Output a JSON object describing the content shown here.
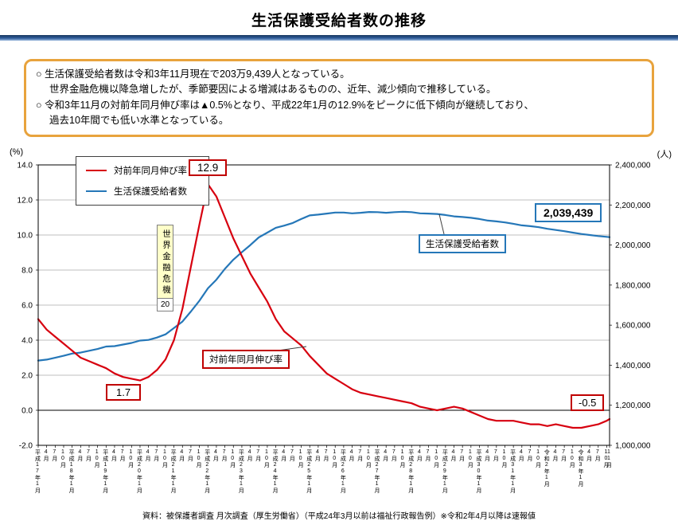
{
  "title": "生活保護受給者数の推移",
  "summary_box": {
    "lines": [
      {
        "text": "○ 生活保護受給者数は令和3年11月現在で203万9,439人となっている。",
        "indent": false
      },
      {
        "text": "世界金融危機以降急増したが、季節要因による増減はあるものの、近年、減少傾向で推移している。",
        "indent": true
      },
      {
        "text": "○ 令和3年11月の対前年同月伸び率は▲0.5%となり、平成22年1月の12.9%をピークに低下傾向が継続しており、",
        "indent": false
      },
      {
        "text": "過去10年間でも低い水準となっている。",
        "indent": true
      }
    ]
  },
  "colors": {
    "rate_line": "#d7000f",
    "recipients_line": "#2577b8",
    "red_callout_border": "#c00000",
    "blue_callout_border": "#2577b8",
    "summary_border": "#e8a33d",
    "crisis_box_bg": "#ffffc9",
    "title_bar": "#17375e",
    "grid": "#bfbfbf"
  },
  "chart_data": {
    "type": "line",
    "title": "生活保護受給者数の推移",
    "grid": true,
    "legend_position": "top-left",
    "left_axis": {
      "unit": "(%)",
      "min": -2,
      "max": 14,
      "ticks": [
        {
          "v": 14,
          "label": "14.0"
        },
        {
          "v": 12,
          "label": "12.0"
        },
        {
          "v": 10,
          "label": "10.0"
        },
        {
          "v": 8,
          "label": "8.0"
        },
        {
          "v": 6,
          "label": "6.0"
        },
        {
          "v": 4,
          "label": "4.0"
        },
        {
          "v": 2,
          "label": "2.0"
        },
        {
          "v": 0,
          "label": "0.0"
        },
        {
          "v": -2,
          "label": "-2.0"
        }
      ]
    },
    "right_axis": {
      "unit": "(人)",
      "min": 1000000,
      "max": 2400000,
      "ticks": [
        {
          "v": 2400000,
          "label": "2,400,000"
        },
        {
          "v": 2200000,
          "label": "2,200,000"
        },
        {
          "v": 2000000,
          "label": "2,000,000"
        },
        {
          "v": 1800000,
          "label": "1,800,000"
        },
        {
          "v": 1600000,
          "label": "1,600,000"
        },
        {
          "v": 1400000,
          "label": "1,400,000"
        },
        {
          "v": 1200000,
          "label": "1,200,000"
        },
        {
          "v": 1000000,
          "label": "1,000,000"
        }
      ]
    },
    "x_tick_labels": [
      "平成17年1月",
      "4月",
      "7月",
      "10月",
      "平成18年1月",
      "4月",
      "7月",
      "10月",
      "平成19年1月",
      "4月",
      "7月",
      "10月",
      "平成20年1月",
      "4月",
      "7月",
      "10月",
      "平成21年1月",
      "4月",
      "7月",
      "10月",
      "平成22年1月",
      "4月",
      "7月",
      "10月",
      "平成23年1月",
      "4月",
      "7月",
      "10月",
      "平成24年1月",
      "4月",
      "7月",
      "10月",
      "平成25年1月",
      "4月",
      "7月",
      "10月",
      "平成26年1月",
      "4月",
      "7月",
      "10月",
      "平成27年1月",
      "4月",
      "7月",
      "10月",
      "平成28年1月",
      "4月",
      "7月",
      "10月",
      "平成29年1月",
      "4月",
      "7月",
      "10月",
      "平成30年1月",
      "4月",
      "7月",
      "10月",
      "平成31年1月",
      "4月",
      "7月",
      "10月",
      "令和2年1月",
      "4月",
      "7月",
      "10月",
      "令和3年1月",
      "4月",
      "7月",
      "10月",
      "11月"
    ],
    "x_month_index": [
      0,
      3,
      6,
      9,
      12,
      15,
      18,
      21,
      24,
      27,
      30,
      33,
      36,
      39,
      42,
      45,
      48,
      51,
      54,
      57,
      60,
      63,
      66,
      69,
      72,
      75,
      78,
      81,
      84,
      87,
      90,
      93,
      96,
      99,
      102,
      105,
      108,
      111,
      114,
      117,
      120,
      123,
      126,
      129,
      132,
      135,
      138,
      141,
      144,
      147,
      150,
      153,
      156,
      159,
      162,
      165,
      168,
      171,
      174,
      177,
      180,
      183,
      186,
      189,
      192,
      195,
      198,
      201,
      202
    ],
    "series": [
      {
        "name": "対前年同月伸び率",
        "axis": "left",
        "color": "#d7000f",
        "values": [
          5.2,
          4.6,
          4.2,
          3.8,
          3.4,
          3.0,
          2.8,
          2.6,
          2.4,
          2.1,
          1.9,
          1.8,
          1.7,
          1.9,
          2.3,
          2.9,
          4.0,
          5.8,
          8.2,
          10.6,
          12.9,
          12.2,
          11.0,
          9.8,
          8.8,
          7.8,
          7.0,
          6.2,
          5.2,
          4.5,
          4.1,
          3.7,
          3.1,
          2.6,
          2.1,
          1.8,
          1.5,
          1.2,
          1.0,
          0.9,
          0.8,
          0.7,
          0.6,
          0.5,
          0.4,
          0.2,
          0.1,
          0.0,
          0.1,
          0.2,
          0.1,
          -0.1,
          -0.3,
          -0.5,
          -0.6,
          -0.6,
          -0.6,
          -0.7,
          -0.8,
          -0.8,
          -0.9,
          -0.8,
          -0.9,
          -1.0,
          -1.0,
          -0.9,
          -0.8,
          -0.6,
          -0.5
        ]
      },
      {
        "name": "生活保護受給者数",
        "axis": "right",
        "color": "#2577b8",
        "values": [
          1423000,
          1428000,
          1437000,
          1447000,
          1458000,
          1463000,
          1472000,
          1481000,
          1493000,
          1495000,
          1503000,
          1511000,
          1523000,
          1526000,
          1538000,
          1554000,
          1586000,
          1618000,
          1668000,
          1722000,
          1784000,
          1827000,
          1881000,
          1927000,
          1964000,
          2000000,
          2038000,
          2062000,
          2086000,
          2097000,
          2110000,
          2130000,
          2148000,
          2152000,
          2157000,
          2162000,
          2162000,
          2158000,
          2161000,
          2165000,
          2164000,
          2161000,
          2164000,
          2166000,
          2164000,
          2158000,
          2157000,
          2155000,
          2150000,
          2143000,
          2140000,
          2136000,
          2130000,
          2122000,
          2118000,
          2113000,
          2106000,
          2098000,
          2094000,
          2089000,
          2081000,
          2075000,
          2069000,
          2062000,
          2055000,
          2050000,
          2045000,
          2041000,
          2039439
        ]
      }
    ],
    "annotations": {
      "peak_label": "12.9",
      "low_label": "1.7",
      "latest_rate_label": "-0.5",
      "latest_count_label": "2,039,439",
      "crisis_label": "世界金融危機",
      "crisis_sub": "20",
      "rate_series_label": "対前年同月伸び率",
      "count_series_label": "生活保護受給者数"
    }
  },
  "footer": "資料：被保護者調査 月次調査（厚生労働省）（平成24年3月以前は福祉行政報告例）※令和2年4月以降は速報値"
}
